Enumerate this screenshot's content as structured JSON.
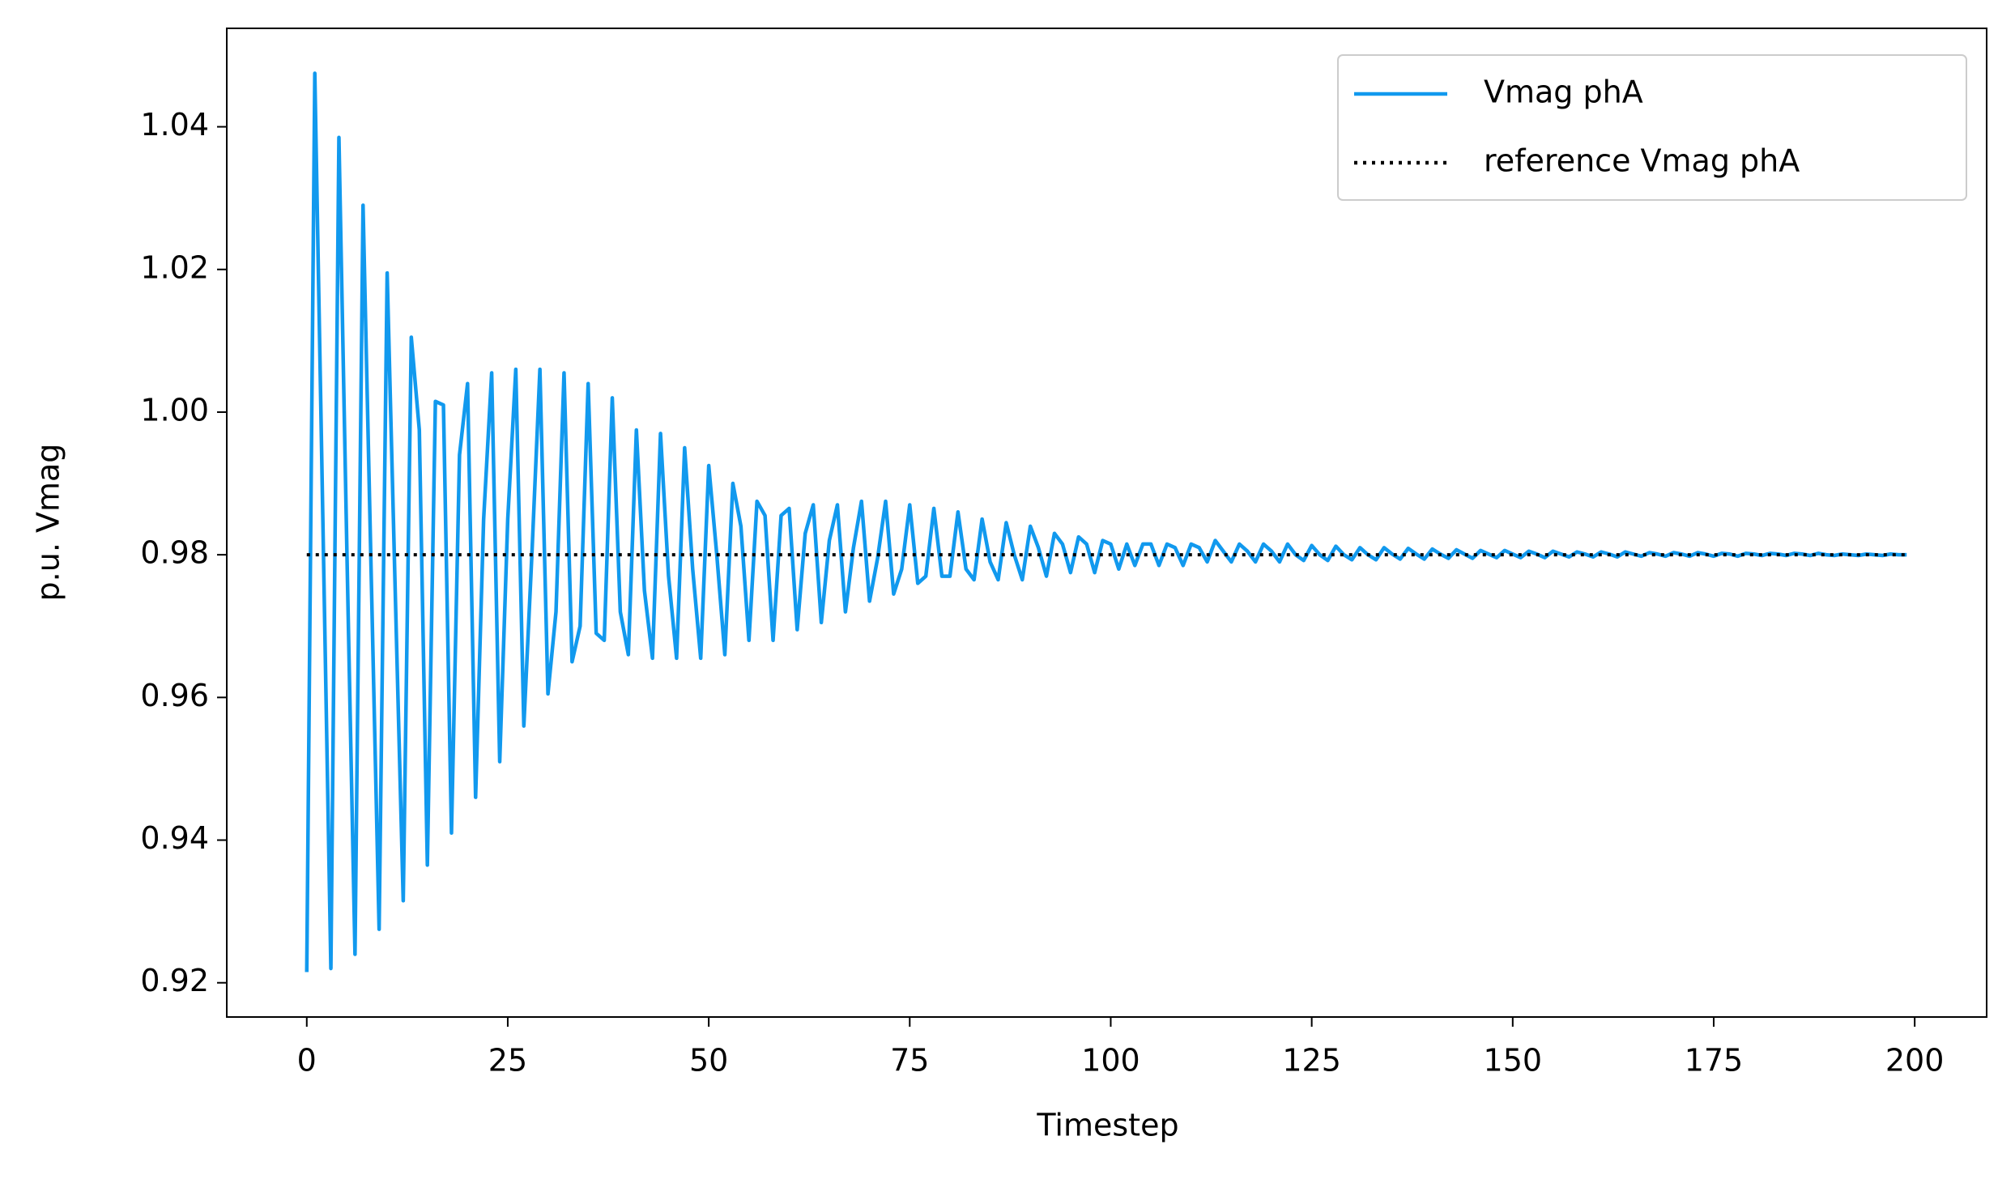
{
  "chart_data": {
    "type": "line",
    "xlabel": "Timestep",
    "ylabel": "p.u. Vmag",
    "x": [
      0,
      1,
      2,
      3,
      4,
      5,
      6,
      7,
      8,
      9,
      10,
      11,
      12,
      13,
      14,
      15,
      16,
      17,
      18,
      19,
      20,
      21,
      22,
      23,
      24,
      25,
      26,
      27,
      28,
      29,
      30,
      31,
      32,
      33,
      34,
      35,
      36,
      37,
      38,
      39,
      40,
      41,
      42,
      43,
      44,
      45,
      46,
      47,
      48,
      49,
      50,
      51,
      52,
      53,
      54,
      55,
      56,
      57,
      58,
      59,
      60,
      61,
      62,
      63,
      64,
      65,
      66,
      67,
      68,
      69,
      70,
      71,
      72,
      73,
      74,
      75,
      76,
      77,
      78,
      79,
      80,
      81,
      82,
      83,
      84,
      85,
      86,
      87,
      88,
      89,
      90,
      91,
      92,
      93,
      94,
      95,
      96,
      97,
      98,
      99,
      100,
      101,
      102,
      103,
      104,
      105,
      106,
      107,
      108,
      109,
      110,
      111,
      112,
      113,
      114,
      115,
      116,
      117,
      118,
      119,
      120,
      121,
      122,
      123,
      124,
      125,
      126,
      127,
      128,
      129,
      130,
      131,
      132,
      133,
      134,
      135,
      136,
      137,
      138,
      139,
      140,
      141,
      142,
      143,
      144,
      145,
      146,
      147,
      148,
      149,
      150,
      151,
      152,
      153,
      154,
      155,
      156,
      157,
      158,
      159,
      160,
      161,
      162,
      163,
      164,
      165,
      166,
      167,
      168,
      169,
      170,
      171,
      172,
      173,
      174,
      175,
      176,
      177,
      178,
      179,
      180,
      181,
      182,
      183,
      184,
      185,
      186,
      187,
      188,
      189,
      190,
      191,
      192,
      193,
      194,
      195,
      196,
      197,
      198,
      199
    ],
    "series": [
      {
        "name": "Vmag phA",
        "color": "#1199ee",
        "dash": "solid",
        "values": [
          0.9215,
          1.0475,
          0.985,
          0.922,
          1.0385,
          0.98,
          0.924,
          1.029,
          0.978,
          0.9275,
          1.0195,
          0.975,
          0.9315,
          1.0105,
          0.9975,
          0.9365,
          1.0015,
          1.001,
          0.941,
          0.994,
          1.004,
          0.946,
          0.985,
          1.0055,
          0.951,
          0.985,
          1.006,
          0.956,
          0.98,
          1.006,
          0.9605,
          0.972,
          1.0055,
          0.965,
          0.97,
          1.004,
          0.969,
          0.968,
          1.002,
          0.972,
          0.966,
          0.9975,
          0.975,
          0.9655,
          0.997,
          0.977,
          0.9655,
          0.995,
          0.978,
          0.9655,
          0.9925,
          0.98,
          0.966,
          0.99,
          0.984,
          0.968,
          0.9875,
          0.9855,
          0.968,
          0.9855,
          0.9865,
          0.9695,
          0.983,
          0.987,
          0.9705,
          0.982,
          0.987,
          0.972,
          0.981,
          0.9875,
          0.9735,
          0.9795,
          0.9875,
          0.9745,
          0.978,
          0.987,
          0.976,
          0.977,
          0.9865,
          0.977,
          0.977,
          0.986,
          0.978,
          0.9765,
          0.985,
          0.979,
          0.9765,
          0.9845,
          0.98,
          0.9765,
          0.984,
          0.981,
          0.977,
          0.983,
          0.9815,
          0.9775,
          0.9825,
          0.9815,
          0.9775,
          0.982,
          0.9815,
          0.978,
          0.9815,
          0.9785,
          0.9815,
          0.9815,
          0.9785,
          0.9815,
          0.981,
          0.9785,
          0.9815,
          0.981,
          0.979,
          0.982,
          0.9805,
          0.979,
          0.9815,
          0.9805,
          0.979,
          0.9815,
          0.9805,
          0.979,
          0.9815,
          0.98,
          0.9792,
          0.9813,
          0.98,
          0.9792,
          0.9812,
          0.98,
          0.9793,
          0.981,
          0.98,
          0.9793,
          0.981,
          0.9801,
          0.9794,
          0.9809,
          0.9801,
          0.9794,
          0.9808,
          0.9801,
          0.9795,
          0.9807,
          0.9801,
          0.9795,
          0.9806,
          0.9801,
          0.9796,
          0.9806,
          0.9801,
          0.9796,
          0.9805,
          0.9801,
          0.9796,
          0.9805,
          0.9801,
          0.9797,
          0.9804,
          0.9801,
          0.9797,
          0.9804,
          0.9801,
          0.9797,
          0.9804,
          0.9801,
          0.9798,
          0.9803,
          0.9801,
          0.9798,
          0.9803,
          0.9801,
          0.9798,
          0.9803,
          0.9801,
          0.9798,
          0.9802,
          0.9801,
          0.9798,
          0.9802,
          0.9801,
          0.9799,
          0.9802,
          0.9801,
          0.9799,
          0.9802,
          0.9801,
          0.9799,
          0.9802,
          0.98,
          0.9799,
          0.9801,
          0.98,
          0.9799,
          0.9801,
          0.98,
          0.9799,
          0.9801,
          0.98,
          0.98
        ]
      },
      {
        "name": "reference Vmag phA",
        "color": "#000000",
        "dash": "dotted",
        "x": [
          0,
          199
        ],
        "values": [
          0.98,
          0.98
        ]
      }
    ],
    "xlim": [
      -9.95,
      208.95
    ],
    "xticks": [
      0,
      25,
      50,
      75,
      100,
      125,
      150,
      175,
      200
    ],
    "ylim": [
      0.9152,
      1.0538
    ],
    "yticks": [
      0.92,
      0.94,
      0.96,
      0.98,
      {
        "value": 1,
        "label": "1.00"
      },
      1.02,
      1.04
    ],
    "legend": "upper right",
    "grid": false
  }
}
